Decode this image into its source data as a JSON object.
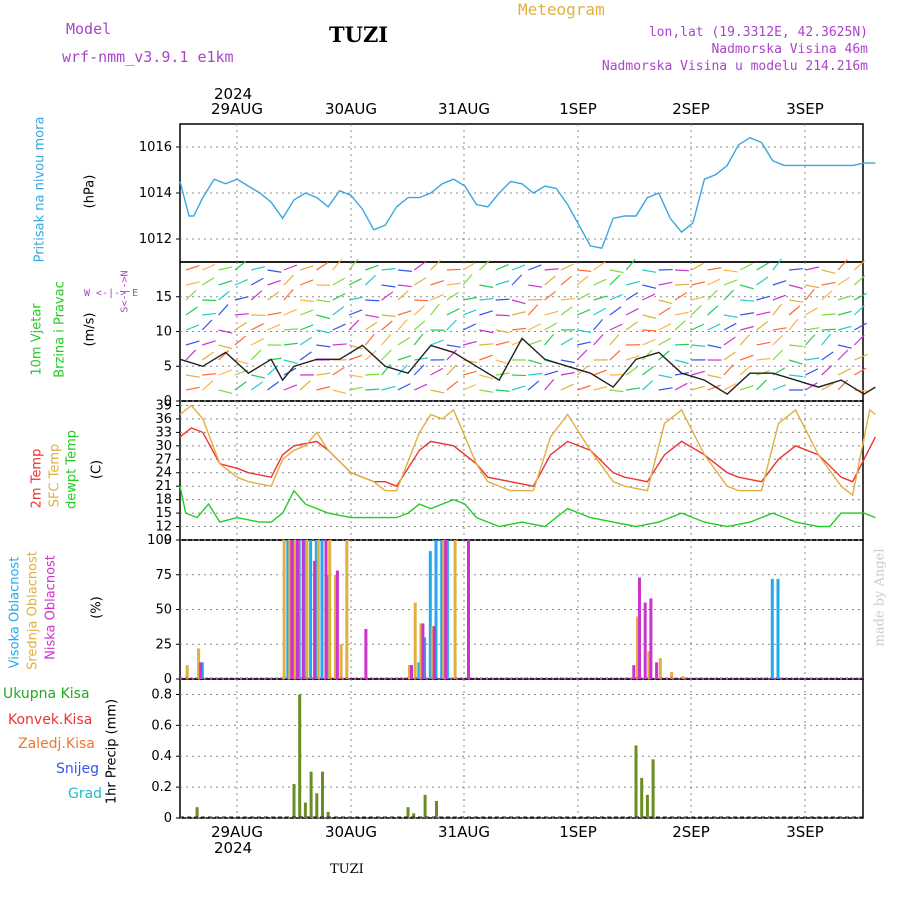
{
  "header": {
    "model_label": "Model",
    "model_name": "wrf-nmm_v3.9.1 e1km",
    "station": "TUZI",
    "title": "Meteogram",
    "lonlat": "lon,lat (19.3312E, 42.3625N)",
    "elevation": "Nadmorska Visina 46m",
    "model_elevation": "Nadmorska Visina u modelu 214.216m"
  },
  "footer": {
    "station": "TUZI",
    "watermark": "made by Angel"
  },
  "time_axis": {
    "year": "2024",
    "day_labels": [
      "29AUG",
      "30AUG",
      "31AUG",
      "1SEP",
      "2SEP",
      "3SEP"
    ]
  },
  "colors": {
    "pressure": "#3aa6e0",
    "green": "#22cc22",
    "red": "#ee3333",
    "orange": "#e0b040",
    "magenta": "#cc33cc",
    "blue": "#3355ee",
    "cyan": "#22bbcc",
    "precip": "#6b8e23",
    "grid": "#888888",
    "axis": "#000000",
    "violet": "#aa44cc"
  },
  "panel_labels": {
    "pressure": {
      "name": "Pritisak na nivou mora",
      "unit": "(hPa)"
    },
    "wind": {
      "line1": "10m Vjetar",
      "line2": "Brzina i Pravac",
      "unit": "(m/s)",
      "compass_ns": "S<-|->N",
      "compass_we": "W <-|-> E"
    },
    "temp": {
      "t2m": "2m Temp",
      "sfc": "SFC Temp",
      "dew": "dewpt Temp",
      "unit": "(C)"
    },
    "cloud": {
      "high": "Visoka Oblacnost",
      "mid": "Srednja Oblacnost",
      "low": "Niska Oblacnost",
      "unit": "(%)"
    },
    "precip": {
      "total": "Ukupna Kisa",
      "conv": "Konvek.Kisa",
      "frz": "Zaledj.Kisa",
      "snow": "Snijeg",
      "grad": "Grad",
      "unit": "1hr Precip (mm)"
    }
  },
  "chart_data": [
    {
      "type": "line",
      "name": "pressure",
      "ylabel": "Pritisak na nivou mora (hPa)",
      "x_days": [
        0.0,
        6.1
      ],
      "ylim": [
        1011.0,
        1017.0
      ],
      "yticks": [
        1012,
        1014,
        1016
      ],
      "series": [
        {
          "name": "Pritisak na nivou mora",
          "x": [
            0,
            0.08,
            0.12,
            0.2,
            0.3,
            0.4,
            0.5,
            0.6,
            0.7,
            0.8,
            0.9,
            1.0,
            1.1,
            1.2,
            1.3,
            1.4,
            1.5,
            1.6,
            1.7,
            1.8,
            1.9,
            2.0,
            2.1,
            2.2,
            2.3,
            2.4,
            2.5,
            2.6,
            2.7,
            2.8,
            2.9,
            3.0,
            3.1,
            3.2,
            3.3,
            3.4,
            3.5,
            3.6,
            3.7,
            3.8,
            3.9,
            4.0,
            4.1,
            4.2,
            4.3,
            4.4,
            4.5,
            4.6,
            4.7,
            4.8,
            4.9,
            5.0,
            5.1,
            5.2,
            5.3,
            5.4,
            5.5,
            5.6,
            5.7,
            5.8,
            5.9,
            6.0,
            6.1
          ],
          "values": [
            1014.5,
            1013.0,
            1013.0,
            1013.8,
            1014.6,
            1014.4,
            1014.6,
            1014.3,
            1014.0,
            1013.6,
            1012.9,
            1013.7,
            1014.0,
            1013.8,
            1013.4,
            1014.1,
            1013.9,
            1013.3,
            1012.4,
            1012.6,
            1013.4,
            1013.8,
            1013.8,
            1014.0,
            1014.4,
            1014.6,
            1014.3,
            1013.5,
            1013.4,
            1014.0,
            1014.5,
            1014.4,
            1014.0,
            1014.3,
            1014.2,
            1013.5,
            1012.6,
            1011.7,
            1011.6,
            1012.9,
            1013.0,
            1013.0,
            1013.8,
            1014.0,
            1012.9,
            1012.3,
            1012.7,
            1014.6,
            1014.8,
            1015.2,
            1016.1,
            1016.4,
            1016.2,
            1015.4,
            1015.2,
            1015.2,
            1015.2,
            1015.2,
            1015.2,
            1015.2,
            1015.2,
            1015.3,
            1015.3
          ]
        }
      ]
    },
    {
      "type": "line",
      "name": "wind",
      "ylabel": "10m Vjetar Brzina i Pravac (m/s)",
      "x_days": [
        0.0,
        6.1
      ],
      "ylim": [
        0,
        20
      ],
      "yticks": [
        0,
        5,
        10,
        15
      ],
      "series": [
        {
          "name": "Brzina",
          "x": [
            0,
            0.2,
            0.4,
            0.6,
            0.8,
            0.9,
            1.0,
            1.2,
            1.4,
            1.6,
            1.8,
            2.0,
            2.2,
            2.4,
            2.6,
            2.8,
            3.0,
            3.2,
            3.4,
            3.6,
            3.8,
            4.0,
            4.2,
            4.4,
            4.6,
            4.8,
            5.0,
            5.2,
            5.4,
            5.6,
            5.8,
            6.0,
            6.1
          ],
          "values": [
            6,
            5,
            7,
            4,
            6,
            3,
            5,
            6,
            6,
            8,
            5,
            4,
            8,
            7,
            5,
            3,
            9,
            6,
            5,
            4,
            2,
            6,
            7,
            4,
            3,
            1,
            4,
            4,
            3,
            2,
            3,
            1,
            2
          ]
        }
      ]
    },
    {
      "type": "line",
      "name": "temperature",
      "ylabel": "Temp (C)",
      "x_days": [
        0.0,
        6.1
      ],
      "ylim": [
        9,
        40
      ],
      "yticks": [
        9,
        12,
        15,
        18,
        21,
        24,
        27,
        30,
        33,
        36,
        39
      ],
      "series": [
        {
          "name": "2m Temp",
          "x": [
            0,
            0.1,
            0.2,
            0.35,
            0.5,
            0.6,
            0.8,
            0.9,
            1.0,
            1.2,
            1.3,
            1.5,
            1.7,
            1.8,
            1.9,
            2.1,
            2.2,
            2.4,
            2.6,
            2.7,
            2.9,
            3.1,
            3.25,
            3.4,
            3.6,
            3.8,
            3.9,
            4.1,
            4.25,
            4.4,
            4.6,
            4.8,
            4.9,
            5.1,
            5.25,
            5.4,
            5.6,
            5.8,
            5.9,
            6.1
          ],
          "values": [
            32,
            34,
            33,
            26,
            25,
            24,
            23,
            28,
            30,
            31,
            29,
            24,
            22,
            22,
            21,
            29,
            31,
            30,
            26,
            23,
            22,
            21,
            28,
            31,
            29,
            24,
            23,
            22,
            28,
            31,
            28,
            24,
            23,
            22,
            27,
            30,
            28,
            23,
            22,
            32
          ]
        },
        {
          "name": "SFC Temp",
          "x": [
            0,
            0.1,
            0.2,
            0.35,
            0.5,
            0.6,
            0.8,
            0.9,
            1.0,
            1.1,
            1.2,
            1.3,
            1.5,
            1.7,
            1.8,
            1.9,
            2.1,
            2.2,
            2.3,
            2.4,
            2.6,
            2.7,
            2.9,
            3.1,
            3.25,
            3.4,
            3.6,
            3.8,
            3.9,
            4.1,
            4.25,
            4.4,
            4.6,
            4.8,
            4.9,
            5.1,
            5.25,
            5.4,
            5.6,
            5.8,
            5.9,
            6.05,
            6.1
          ],
          "values": [
            37,
            39,
            36,
            26,
            23,
            22,
            21,
            27,
            29,
            30,
            33,
            29,
            24,
            22,
            20,
            20,
            33,
            37,
            36,
            38,
            26,
            22,
            20,
            20,
            32,
            37,
            29,
            22,
            21,
            20,
            35,
            38,
            28,
            21,
            20,
            20,
            35,
            38,
            28,
            21,
            19,
            38,
            37
          ]
        },
        {
          "name": "dewpt Temp",
          "x": [
            0,
            0.05,
            0.15,
            0.25,
            0.35,
            0.5,
            0.7,
            0.8,
            0.9,
            1.0,
            1.1,
            1.3,
            1.5,
            1.7,
            1.8,
            1.9,
            2.0,
            2.1,
            2.2,
            2.4,
            2.5,
            2.6,
            2.8,
            3.0,
            3.2,
            3.4,
            3.6,
            3.8,
            4.0,
            4.2,
            4.4,
            4.6,
            4.8,
            5.0,
            5.2,
            5.4,
            5.6,
            5.7,
            5.8,
            6.0,
            6.1
          ],
          "values": [
            21,
            15,
            14,
            17,
            13,
            14,
            13,
            13,
            15,
            20,
            17,
            15,
            14,
            14,
            14,
            14,
            15,
            17,
            16,
            18,
            17,
            14,
            12,
            13,
            12,
            16,
            14,
            13,
            12,
            13,
            15,
            13,
            12,
            13,
            15,
            13,
            12,
            12,
            15,
            15,
            14
          ]
        }
      ]
    },
    {
      "type": "bar",
      "name": "cloud",
      "ylabel": "Oblacnost (%)",
      "x_days": [
        0.0,
        6.1
      ],
      "ylim": [
        0,
        100
      ],
      "yticks": [
        0,
        25,
        50,
        75,
        100
      ],
      "series": [
        {
          "name": "Visoka Oblacnost",
          "x": [
            0.2,
            0.95,
            1.0,
            1.05,
            1.1,
            1.15,
            1.2,
            1.25,
            1.3,
            2.1,
            2.15,
            2.2,
            2.25,
            2.3,
            2.35,
            5.2,
            5.25
          ],
          "values": [
            12,
            100,
            100,
            100,
            100,
            100,
            100,
            100,
            75,
            12,
            30,
            92,
            100,
            100,
            100,
            72,
            72
          ]
        },
        {
          "name": "Srednja Oblacnost",
          "x": [
            0.05,
            0.15,
            0.9,
            0.95,
            1.0,
            1.1,
            1.2,
            1.3,
            1.35,
            1.4,
            1.45,
            2.0,
            2.05,
            2.1,
            2.2,
            2.3,
            2.4,
            4.0,
            4.1,
            4.2,
            4.3,
            4.4
          ],
          "values": [
            10,
            22,
            100,
            100,
            100,
            100,
            100,
            100,
            75,
            25,
            100,
            10,
            55,
            40,
            38,
            100,
            100,
            45,
            20,
            15,
            5,
            2
          ]
        },
        {
          "name": "Niska Oblacnost",
          "x": [
            0.15,
            0.95,
            1.0,
            1.05,
            1.15,
            1.25,
            1.35,
            1.6,
            2.0,
            2.1,
            2.2,
            2.3,
            2.5,
            3.95,
            4.0,
            4.05,
            4.1,
            4.15
          ],
          "values": [
            12,
            100,
            100,
            100,
            85,
            100,
            78,
            36,
            10,
            40,
            38,
            100,
            100,
            10,
            73,
            55,
            58,
            12
          ]
        }
      ]
    },
    {
      "type": "bar",
      "name": "precip",
      "ylabel": "1hr Precip (mm)",
      "x_days": [
        0.0,
        6.1
      ],
      "ylim": [
        0,
        0.9
      ],
      "yticks": [
        0,
        0.2,
        0.4,
        0.6,
        0.8
      ],
      "series": [
        {
          "name": "Ukupna Kisa",
          "x": [
            0.15,
            1.0,
            1.05,
            1.1,
            1.15,
            1.2,
            1.25,
            1.3,
            2.0,
            2.05,
            2.15,
            2.25,
            4.0,
            4.05,
            4.1,
            4.15
          ],
          "values": [
            0.07,
            0.22,
            0.8,
            0.1,
            0.3,
            0.16,
            0.3,
            0.04,
            0.07,
            0.03,
            0.15,
            0.11,
            0.47,
            0.26,
            0.15,
            0.38
          ]
        }
      ]
    }
  ]
}
